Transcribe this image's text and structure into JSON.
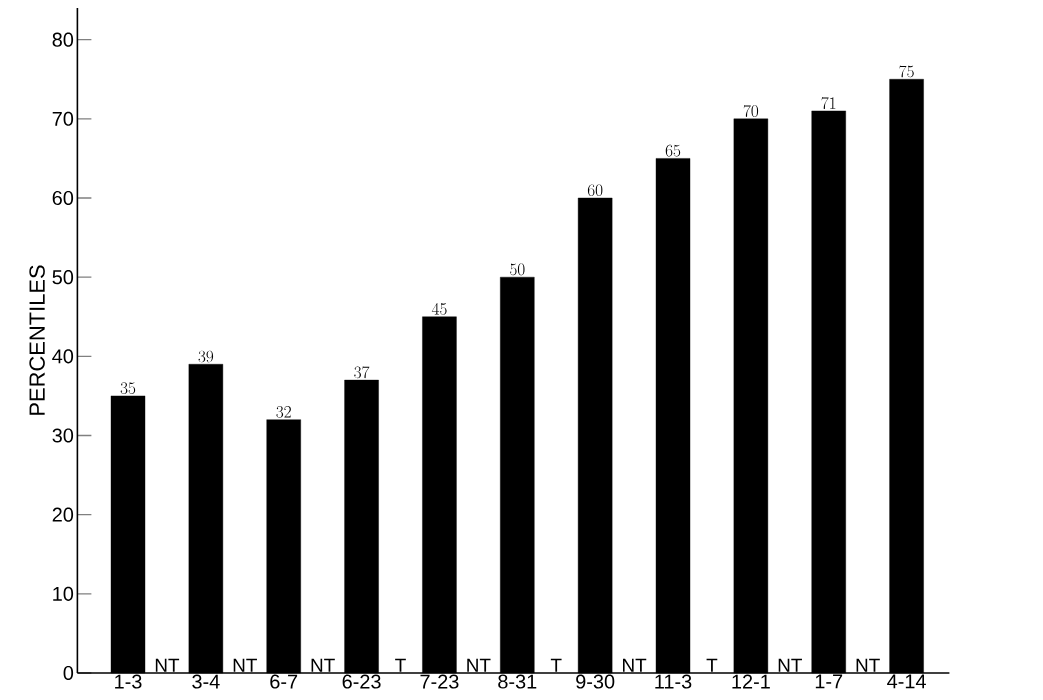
{
  "chart_data": {
    "type": "bar",
    "ylabel": "PERCENTILES",
    "categories": [
      "1-3",
      "3-4",
      "6-7",
      "6-23",
      "7-23",
      "8-31",
      "9-30",
      "11-3",
      "12-1",
      "1-7",
      "4-14"
    ],
    "values": [
      35,
      39,
      32,
      37,
      45,
      50,
      60,
      65,
      70,
      71,
      75
    ],
    "color": "#000000",
    "data_labels": true,
    "ylim": [
      0,
      84
    ],
    "yticks": [
      0,
      10,
      20,
      30,
      40,
      50,
      60,
      70,
      80
    ],
    "grid": false,
    "annotations": [
      "NT",
      "NT",
      "NT",
      "T",
      "NT",
      "T",
      "NT",
      "T",
      "NT",
      "NT"
    ]
  }
}
